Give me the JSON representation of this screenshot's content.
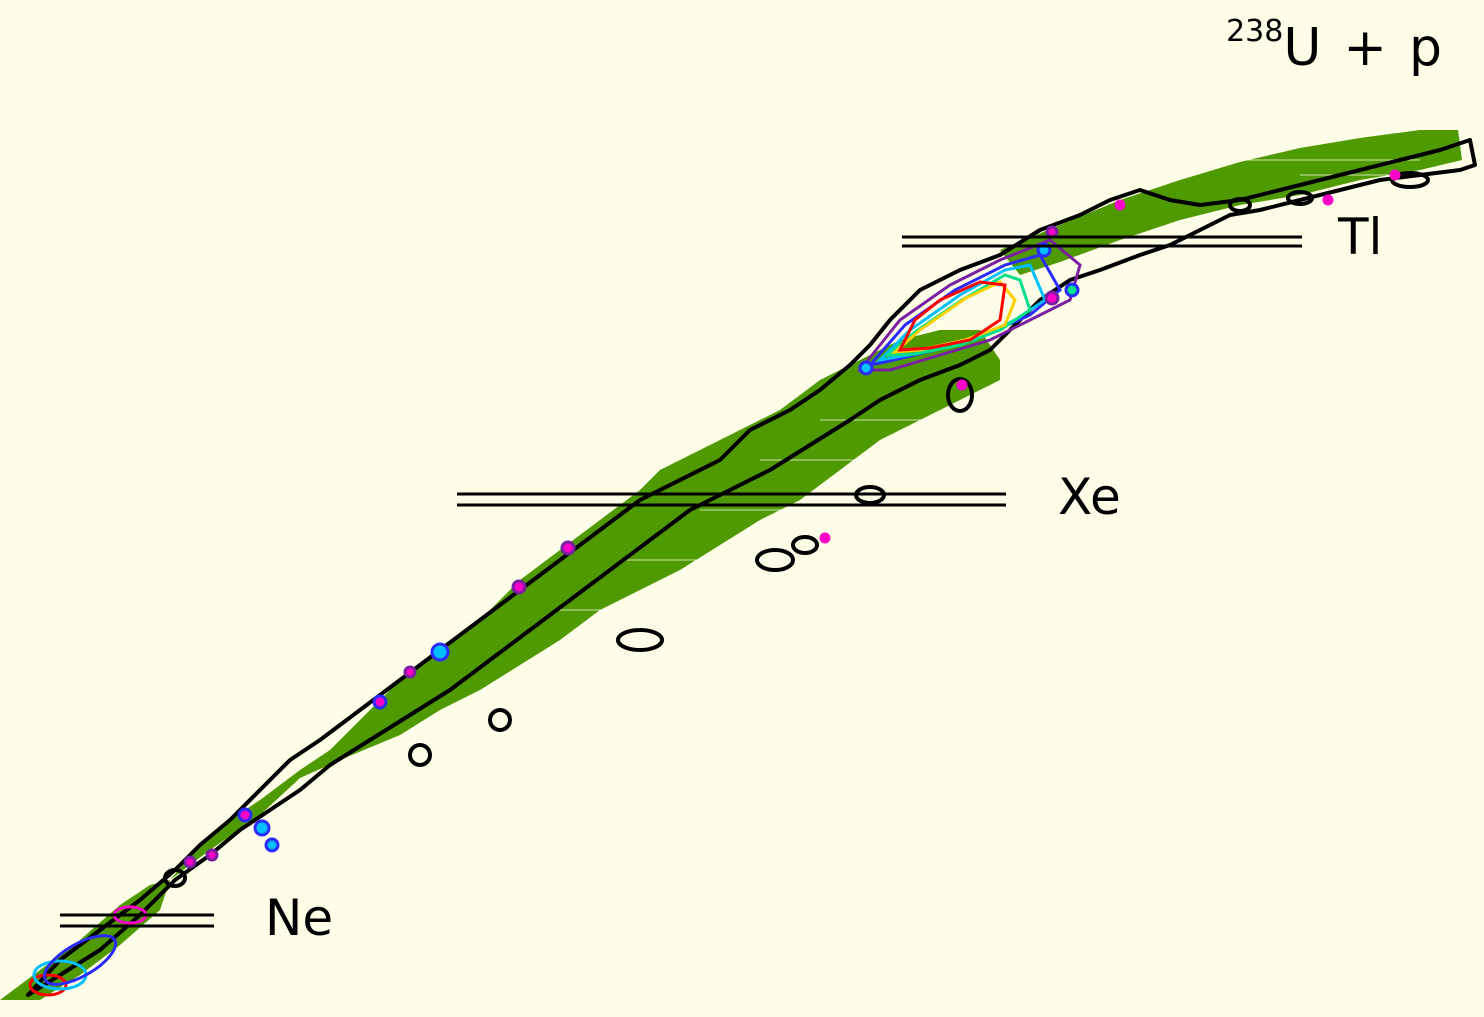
{
  "reaction": {
    "mass_number": "238",
    "target": "U",
    "plus": "+",
    "projectile": "p"
  },
  "element_labels": [
    {
      "id": "tl",
      "text": "Tl"
    },
    {
      "id": "xe",
      "text": "Xe"
    },
    {
      "id": "ne",
      "text": "Ne"
    }
  ],
  "colors": {
    "background": "#fdfde8",
    "measured_region": "#4e9a00",
    "contour": "#000000",
    "marker_lines": "#000000",
    "color_scale": [
      "#7b1fa2",
      "#ff00c8",
      "#2b2bff",
      "#00c0ff",
      "#00e08a",
      "#c8ff00",
      "#ffd000",
      "#ff0000"
    ]
  }
}
